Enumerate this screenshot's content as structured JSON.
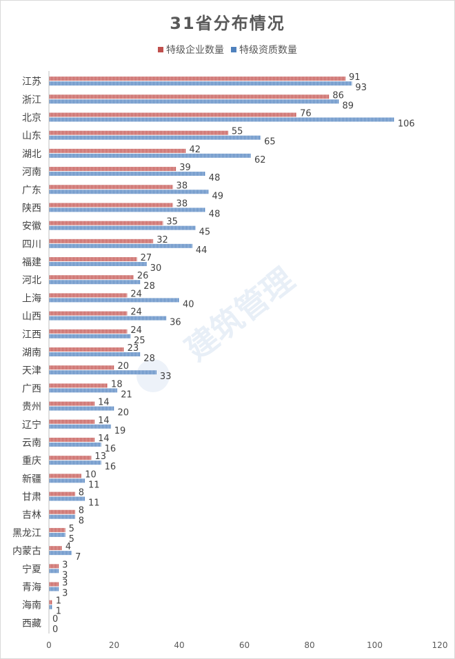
{
  "chart_data": {
    "type": "bar",
    "orientation": "horizontal",
    "title": "31省分布情况",
    "categories": [
      "江苏",
      "浙江",
      "北京",
      "山东",
      "湖北",
      "河南",
      "广东",
      "陕西",
      "安徽",
      "四川",
      "福建",
      "河北",
      "上海",
      "山西",
      "江西",
      "湖南",
      "天津",
      "广西",
      "贵州",
      "辽宁",
      "云南",
      "重庆",
      "新疆",
      "甘肃",
      "吉林",
      "黑龙江",
      "内蒙古",
      "宁夏",
      "青海",
      "海南",
      "西藏"
    ],
    "series": [
      {
        "name": "特级企业数量",
        "color": "#c0504d",
        "values": [
          91,
          86,
          76,
          55,
          42,
          39,
          38,
          38,
          35,
          32,
          27,
          26,
          24,
          24,
          24,
          23,
          20,
          18,
          14,
          14,
          14,
          13,
          10,
          8,
          8,
          5,
          4,
          3,
          3,
          1,
          0
        ]
      },
      {
        "name": "特级资质数量",
        "color": "#4f81bd",
        "values": [
          93,
          89,
          106,
          65,
          62,
          48,
          49,
          48,
          45,
          44,
          30,
          28,
          40,
          36,
          25,
          28,
          33,
          21,
          20,
          19,
          16,
          16,
          11,
          11,
          8,
          5,
          7,
          3,
          3,
          1,
          0
        ]
      }
    ],
    "xlim": [
      0,
      120
    ],
    "xticks": [
      0,
      20,
      40,
      60,
      80,
      100,
      120
    ],
    "legend_position": "top",
    "grid": false
  },
  "watermark": "建筑管理"
}
